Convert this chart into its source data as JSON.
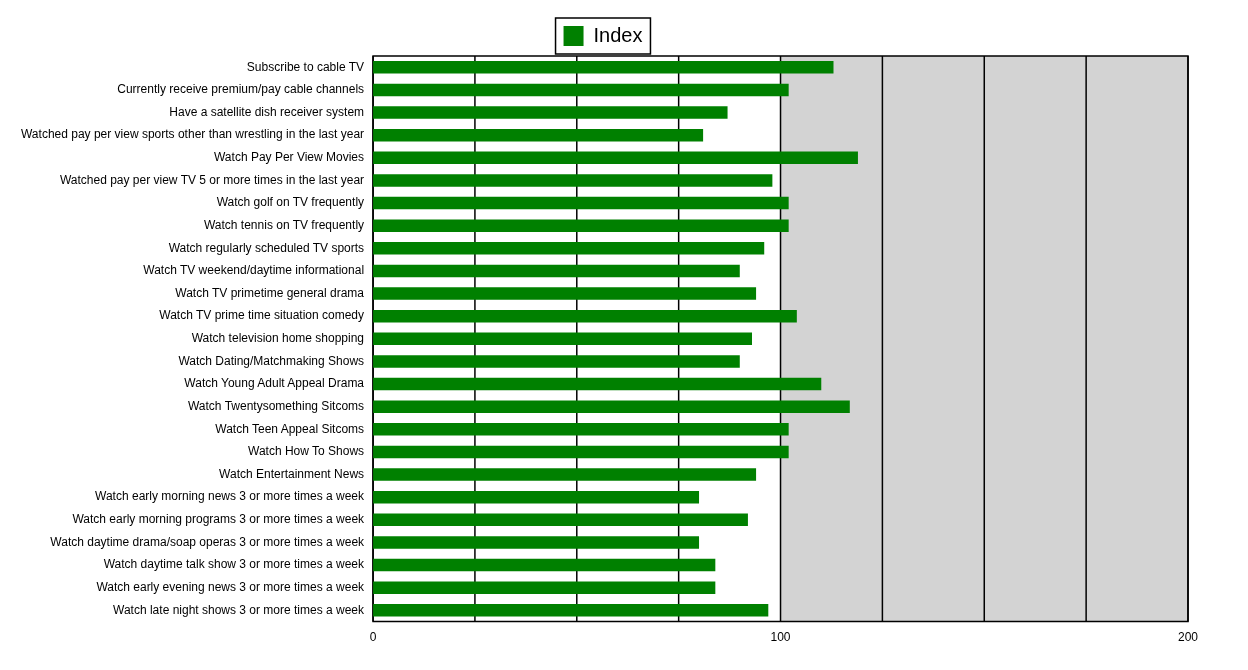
{
  "chart_data": {
    "type": "bar",
    "orientation": "horizontal",
    "categories": [
      "Subscribe to cable TV",
      "Currently receive premium/pay cable channels",
      "Have a satellite dish receiver system",
      "Watched pay per view sports other than wrestling in the last year",
      "Watch Pay Per View Movies",
      "Watched pay per view TV 5 or more times in the last year",
      "Watch golf on TV frequently",
      "Watch tennis on TV frequently",
      "Watch regularly scheduled TV sports",
      "Watch TV weekend/daytime informational",
      "Watch TV primetime general drama",
      "Watch TV prime time situation comedy",
      "Watch television home shopping",
      "Watch Dating/Matchmaking Shows",
      "Watch Young Adult Appeal Drama",
      "Watch Twentysomething Sitcoms",
      "Watch Teen Appeal Sitcoms",
      "Watch How To Shows",
      "Watch Entertainment News",
      "Watch early morning news 3 or more times a week",
      "Watch early morning programs 3 or more times a week",
      "Watch daytime drama/soap operas 3 or more times a week",
      "Watch daytime talk show 3 or more times a week",
      "Watch early evening news 3 or more times a week",
      "Watch late night shows 3 or more times a week"
    ],
    "series": [
      {
        "name": "Index",
        "color": "#008000",
        "values": [
          113,
          102,
          87,
          81,
          119,
          98,
          102,
          102,
          96,
          90,
          94,
          104,
          93,
          90,
          110,
          117,
          102,
          102,
          94,
          80,
          92,
          80,
          84,
          84,
          97
        ]
      }
    ],
    "xlim": [
      0,
      200
    ],
    "xticks": [
      0,
      {
        "value": 25,
        "label": null
      },
      {
        "value": 50,
        "label": null
      },
      {
        "value": 75,
        "label": null
      },
      100,
      {
        "value": 125,
        "label": null
      },
      {
        "value": 150,
        "label": null
      },
      {
        "value": 175,
        "label": null
      },
      200
    ],
    "bands": [
      {
        "axis": "x",
        "from": 100,
        "to": 200,
        "color": "#d3d3d3"
      }
    ],
    "grid": "x",
    "legend": "top"
  }
}
